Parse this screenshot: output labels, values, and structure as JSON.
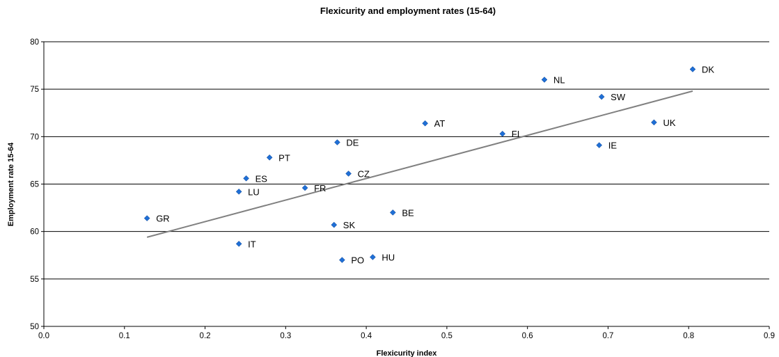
{
  "chart_data": {
    "type": "scatter",
    "title": "Flexicurity and employment rates (15-64)",
    "xlabel": "Flexicurity index",
    "ylabel": "Employment rate 15-64",
    "xlim": [
      0.0,
      0.9
    ],
    "ylim": [
      50,
      80
    ],
    "xticks": [
      "0.0",
      "0.1",
      "0.2",
      "0.3",
      "0.4",
      "0.5",
      "0.6",
      "0.7",
      "0.8",
      "0.9"
    ],
    "yticks": [
      "50",
      "55",
      "60",
      "65",
      "70",
      "75",
      "80"
    ],
    "grid": "horizontal",
    "marker_color": "#1f6fd6",
    "trendline_color": "#808080",
    "points": [
      {
        "label": "DK",
        "x": 0.805,
        "y": 77.1
      },
      {
        "label": "NL",
        "x": 0.621,
        "y": 76.0
      },
      {
        "label": "SW",
        "x": 0.692,
        "y": 74.2
      },
      {
        "label": "UK",
        "x": 0.757,
        "y": 71.5
      },
      {
        "label": "AT",
        "x": 0.473,
        "y": 71.4
      },
      {
        "label": "FI",
        "x": 0.569,
        "y": 70.3
      },
      {
        "label": "IE",
        "x": 0.689,
        "y": 69.1
      },
      {
        "label": "DE",
        "x": 0.364,
        "y": 69.4
      },
      {
        "label": "PT",
        "x": 0.28,
        "y": 67.8
      },
      {
        "label": "CZ",
        "x": 0.378,
        "y": 66.1
      },
      {
        "label": "ES",
        "x": 0.251,
        "y": 65.6
      },
      {
        "label": "FR",
        "x": 0.324,
        "y": 64.6
      },
      {
        "label": "LU",
        "x": 0.242,
        "y": 64.2
      },
      {
        "label": "BE",
        "x": 0.433,
        "y": 62.0
      },
      {
        "label": "GR",
        "x": 0.128,
        "y": 61.4
      },
      {
        "label": "SK",
        "x": 0.36,
        "y": 60.7
      },
      {
        "label": "IT",
        "x": 0.242,
        "y": 58.7
      },
      {
        "label": "HU",
        "x": 0.408,
        "y": 57.3
      },
      {
        "label": "PO",
        "x": 0.37,
        "y": 57.0
      }
    ],
    "trendline": {
      "x": [
        0.128,
        0.805
      ],
      "y": [
        59.4,
        74.8
      ]
    }
  }
}
